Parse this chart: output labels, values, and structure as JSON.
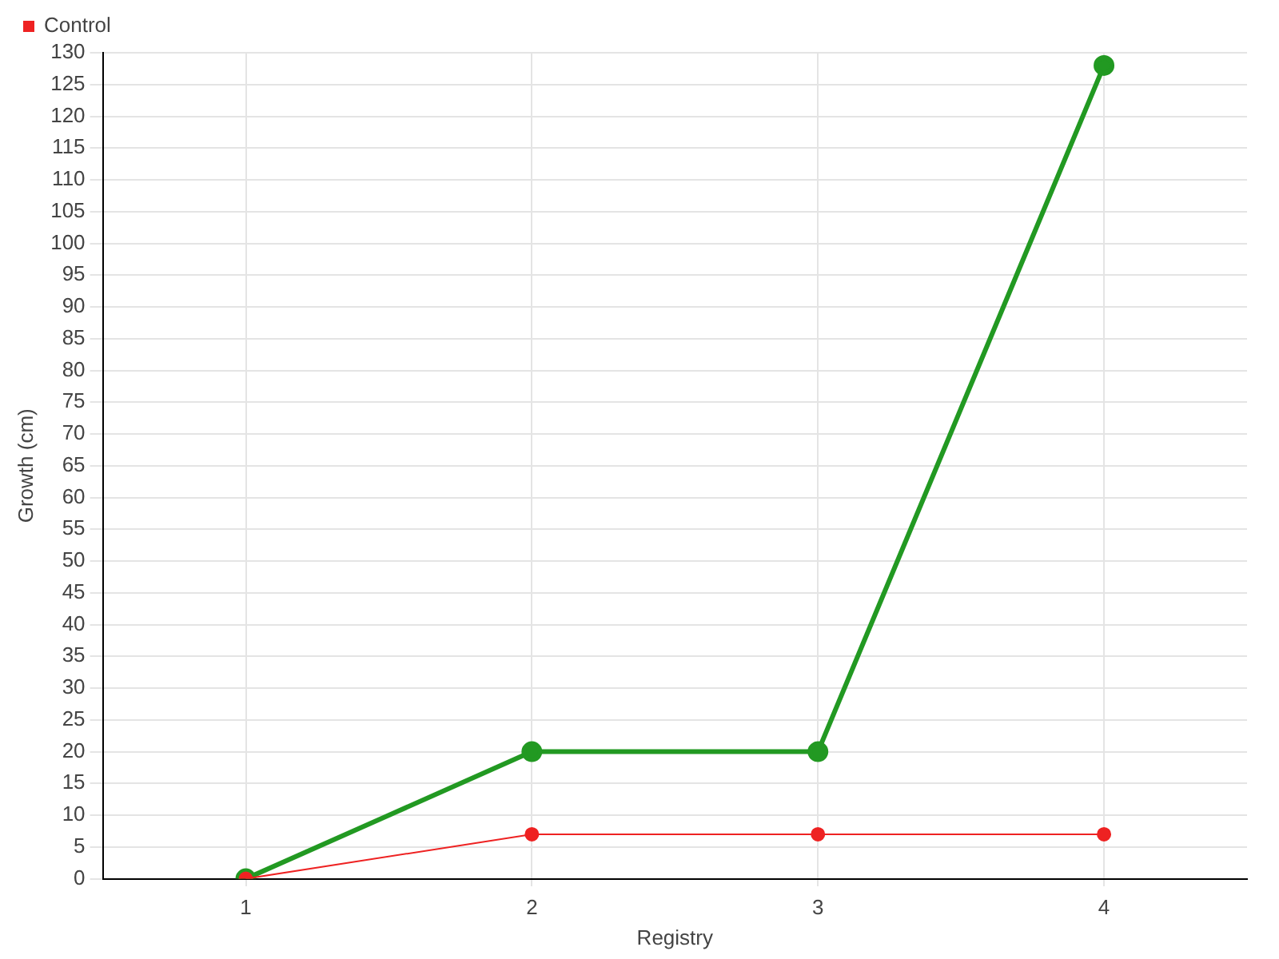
{
  "chart_data": {
    "type": "line",
    "xlabel": "Registry",
    "ylabel": "Growth (cm)",
    "categories": [
      "1",
      "2",
      "3",
      "4"
    ],
    "series": [
      {
        "color": "#229922",
        "values": [
          0,
          20,
          20,
          128
        ]
      },
      {
        "name": "Control",
        "color": "#ee2222",
        "values": [
          0,
          7,
          7,
          7
        ]
      }
    ],
    "ylim": [
      0,
      130
    ],
    "yticks": [
      0,
      5,
      10,
      15,
      20,
      25,
      30,
      35,
      40,
      45,
      50,
      55,
      60,
      65,
      70,
      75,
      80,
      85,
      90,
      95,
      100,
      105,
      110,
      115,
      120,
      125,
      130
    ],
    "grid": true,
    "legend": "top left",
    "marker": "circle",
    "line_style": "solid"
  }
}
